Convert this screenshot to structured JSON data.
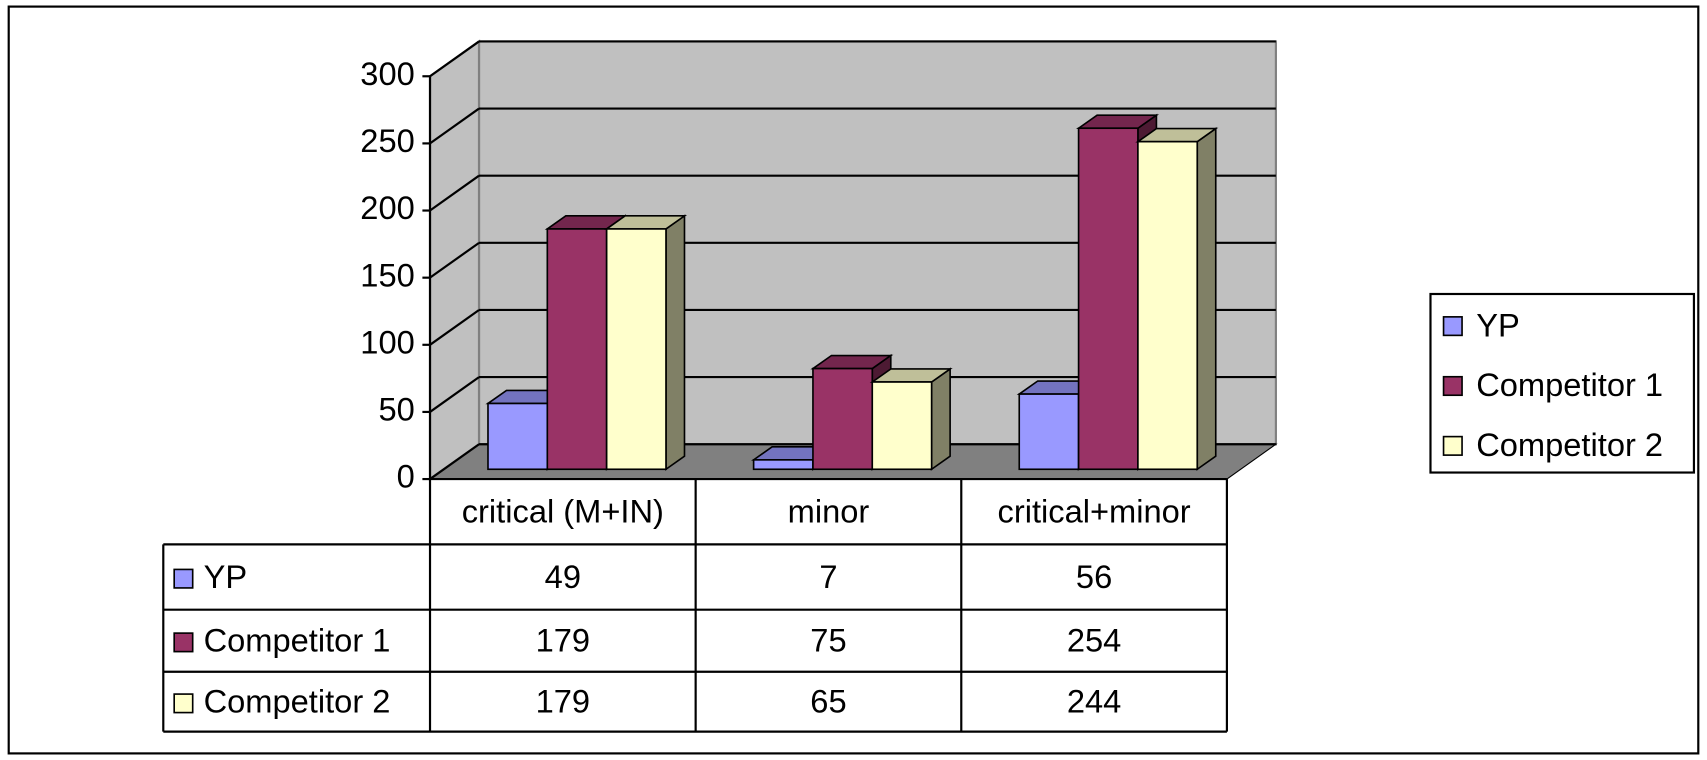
{
  "chart_data": {
    "type": "bar3d",
    "categories": [
      "critical (M+IN)",
      "minor",
      "critical+minor"
    ],
    "series": [
      {
        "name": "YP",
        "color": "#9999ff",
        "values": [
          49,
          7,
          56
        ]
      },
      {
        "name": "Competitor 1",
        "color": "#993366",
        "values": [
          179,
          75,
          254
        ]
      },
      {
        "name": "Competitor 2",
        "color": "#ffffcc",
        "values": [
          179,
          65,
          244
        ]
      }
    ],
    "ylim": [
      0,
      300
    ],
    "yticks": [
      0,
      50,
      100,
      150,
      200,
      250,
      300
    ],
    "grid": true,
    "legend": "right",
    "data_table": true
  }
}
